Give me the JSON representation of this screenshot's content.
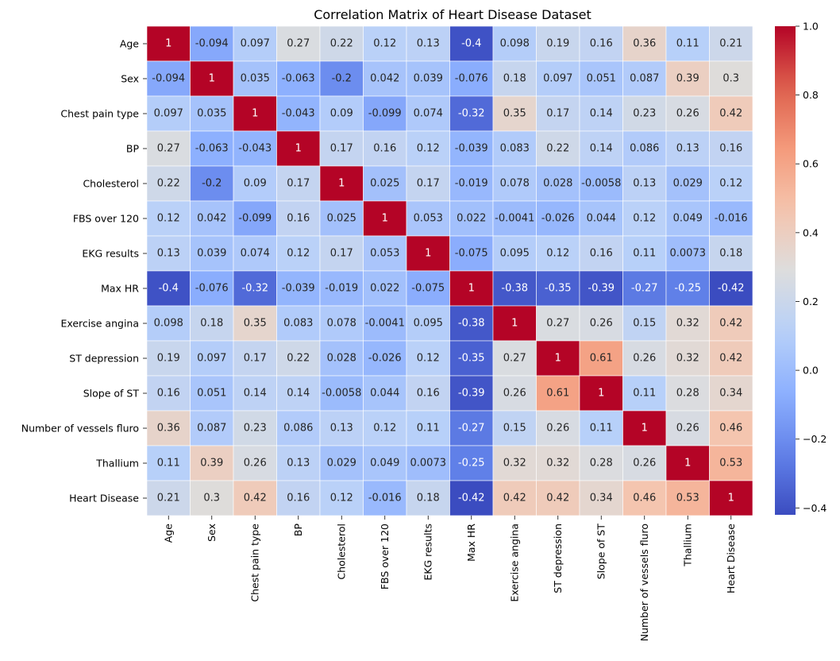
{
  "chart_data": {
    "type": "heatmap",
    "title": "Correlation Matrix of Heart Disease Dataset",
    "labels": [
      "Age",
      "Sex",
      "Chest pain type",
      "BP",
      "Cholesterol",
      "FBS over 120",
      "EKG results",
      "Max HR",
      "Exercise angina",
      "ST depression",
      "Slope of ST",
      "Number of vessels fluro",
      "Thallium",
      "Heart Disease"
    ],
    "matrix": [
      [
        "1",
        "-0.094",
        "0.097",
        "0.27",
        "0.22",
        "0.12",
        "0.13",
        "-0.4",
        "0.098",
        "0.19",
        "0.16",
        "0.36",
        "0.11",
        "0.21"
      ],
      [
        "-0.094",
        "1",
        "0.035",
        "-0.063",
        "-0.2",
        "0.042",
        "0.039",
        "-0.076",
        "0.18",
        "0.097",
        "0.051",
        "0.087",
        "0.39",
        "0.3"
      ],
      [
        "0.097",
        "0.035",
        "1",
        "-0.043",
        "0.09",
        "-0.099",
        "0.074",
        "-0.32",
        "0.35",
        "0.17",
        "0.14",
        "0.23",
        "0.26",
        "0.42"
      ],
      [
        "0.27",
        "-0.063",
        "-0.043",
        "1",
        "0.17",
        "0.16",
        "0.12",
        "-0.039",
        "0.083",
        "0.22",
        "0.14",
        "0.086",
        "0.13",
        "0.16"
      ],
      [
        "0.22",
        "-0.2",
        "0.09",
        "0.17",
        "1",
        "0.025",
        "0.17",
        "-0.019",
        "0.078",
        "0.028",
        "-0.0058",
        "0.13",
        "0.029",
        "0.12"
      ],
      [
        "0.12",
        "0.042",
        "-0.099",
        "0.16",
        "0.025",
        "1",
        "0.053",
        "0.022",
        "-0.0041",
        "-0.026",
        "0.044",
        "0.12",
        "0.049",
        "-0.016"
      ],
      [
        "0.13",
        "0.039",
        "0.074",
        "0.12",
        "0.17",
        "0.053",
        "1",
        "-0.075",
        "0.095",
        "0.12",
        "0.16",
        "0.11",
        "0.0073",
        "0.18"
      ],
      [
        "-0.4",
        "-0.076",
        "-0.32",
        "-0.039",
        "-0.019",
        "0.022",
        "-0.075",
        "1",
        "-0.38",
        "-0.35",
        "-0.39",
        "-0.27",
        "-0.25",
        "-0.42"
      ],
      [
        "0.098",
        "0.18",
        "0.35",
        "0.083",
        "0.078",
        "-0.0041",
        "0.095",
        "-0.38",
        "1",
        "0.27",
        "0.26",
        "0.15",
        "0.32",
        "0.42"
      ],
      [
        "0.19",
        "0.097",
        "0.17",
        "0.22",
        "0.028",
        "-0.026",
        "0.12",
        "-0.35",
        "0.27",
        "1",
        "0.61",
        "0.26",
        "0.32",
        "0.42"
      ],
      [
        "0.16",
        "0.051",
        "0.14",
        "0.14",
        "-0.0058",
        "0.044",
        "0.16",
        "-0.39",
        "0.26",
        "0.61",
        "1",
        "0.11",
        "0.28",
        "0.34"
      ],
      [
        "0.36",
        "0.087",
        "0.23",
        "0.086",
        "0.13",
        "0.12",
        "0.11",
        "-0.27",
        "0.15",
        "0.26",
        "0.11",
        "1",
        "0.26",
        "0.46"
      ],
      [
        "0.11",
        "0.39",
        "0.26",
        "0.13",
        "0.029",
        "0.049",
        "0.0073",
        "-0.25",
        "0.32",
        "0.32",
        "0.28",
        "0.26",
        "1",
        "0.53"
      ],
      [
        "0.21",
        "0.3",
        "0.42",
        "0.16",
        "0.12",
        "-0.016",
        "0.18",
        "-0.42",
        "0.42",
        "0.42",
        "0.34",
        "0.46",
        "0.53",
        "1"
      ]
    ],
    "colormap": "coolwarm",
    "vmin": -0.42,
    "vmax": 1.0,
    "colorbar_ticks": [
      "1.0",
      "0.8",
      "0.6",
      "0.4",
      "0.2",
      "0.0",
      "−0.2",
      "−0.4"
    ],
    "colorbar_tick_values": [
      1.0,
      0.8,
      0.6,
      0.4,
      0.2,
      0.0,
      -0.2,
      -0.4
    ],
    "cell_border_color": "#ffffff"
  }
}
